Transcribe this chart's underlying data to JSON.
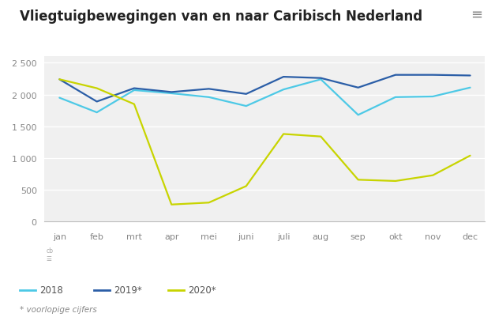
{
  "title": "Vliegtuigbewegingen van en naar Caribisch Nederland",
  "months": [
    "jan",
    "feb",
    "mrt",
    "apr",
    "mei",
    "juni",
    "juli",
    "aug",
    "sep",
    "okt",
    "nov",
    "dec"
  ],
  "series_2018": [
    1950,
    1720,
    2070,
    2020,
    1960,
    1820,
    2080,
    2240,
    1680,
    1960,
    1970,
    2110
  ],
  "series_2019": [
    2240,
    1890,
    2100,
    2040,
    2090,
    2010,
    2280,
    2260,
    2110,
    2310,
    2310,
    2300
  ],
  "series_2020": [
    2240,
    2100,
    1850,
    270,
    300,
    560,
    1380,
    1340,
    660,
    640,
    730,
    1040
  ],
  "color_2018": "#4dc9e6",
  "color_2019": "#2b5ea7",
  "color_2020": "#c8d400",
  "background_plot": "#f0f0f0",
  "grid_color": "#ffffff",
  "tick_color": "#888888",
  "title_fontsize": 12,
  "legend_fontsize": 8.5,
  "tick_fontsize": 8,
  "note_text": "* voorlopige cijfers",
  "legend_labels": [
    "2018",
    "2019*",
    "2020*"
  ],
  "ylim": [
    0,
    2600
  ],
  "yticks": [
    0,
    500,
    1000,
    1500,
    2000,
    2500
  ],
  "ytick_labels": [
    "0",
    "500",
    "1 000",
    "1 500",
    "2 000",
    "2 500"
  ],
  "line_width": 1.6,
  "bottom_gray": "#e8e8e8"
}
